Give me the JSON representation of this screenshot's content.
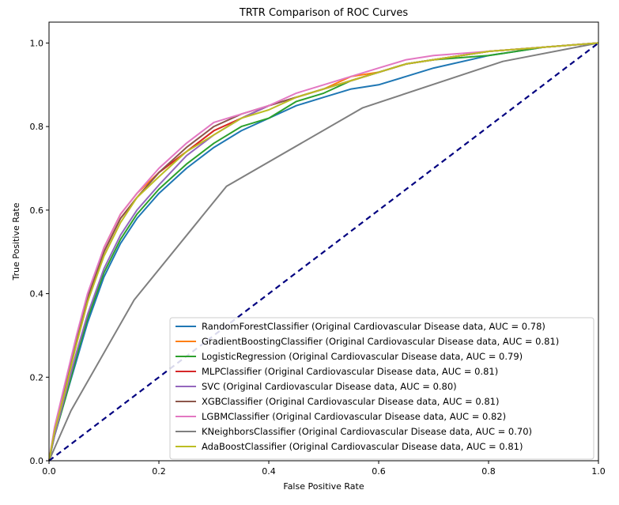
{
  "chart_data": {
    "type": "line",
    "title": "TRTR Comparison of ROC Curves",
    "xlabel": "False Positive Rate",
    "ylabel": "True Positive Rate",
    "xlim": [
      0.0,
      1.0
    ],
    "ylim": [
      0.0,
      1.05
    ],
    "xticks": [
      "0.0",
      "0.2",
      "0.4",
      "0.6",
      "0.8",
      "1.0"
    ],
    "yticks": [
      "0.0",
      "0.2",
      "0.4",
      "0.6",
      "0.8",
      "1.0"
    ],
    "grid": false,
    "legend_position": "lower-right",
    "series": [
      {
        "name": "RandomForestClassifier (Original Cardiovascular Disease data, AUC = 0.78)",
        "color": "#1f77b4",
        "x": [
          0,
          0.01,
          0.03,
          0.05,
          0.07,
          0.1,
          0.13,
          0.16,
          0.2,
          0.25,
          0.3,
          0.35,
          0.4,
          0.45,
          0.5,
          0.55,
          0.6,
          0.65,
          0.7,
          0.8,
          0.9,
          1.0
        ],
        "y": [
          0,
          0.06,
          0.15,
          0.24,
          0.33,
          0.44,
          0.52,
          0.58,
          0.64,
          0.7,
          0.75,
          0.79,
          0.82,
          0.85,
          0.87,
          0.89,
          0.9,
          0.92,
          0.94,
          0.97,
          0.99,
          1.0
        ]
      },
      {
        "name": "GradientBoostingClassifier (Original Cardiovascular Disease data, AUC = 0.81)",
        "color": "#ff7f0e",
        "x": [
          0,
          0.01,
          0.03,
          0.05,
          0.07,
          0.1,
          0.13,
          0.16,
          0.2,
          0.25,
          0.3,
          0.35,
          0.4,
          0.45,
          0.5,
          0.55,
          0.6,
          0.65,
          0.7,
          0.8,
          0.9,
          1.0
        ],
        "y": [
          0,
          0.07,
          0.18,
          0.29,
          0.39,
          0.51,
          0.59,
          0.64,
          0.69,
          0.74,
          0.79,
          0.82,
          0.85,
          0.87,
          0.89,
          0.92,
          0.93,
          0.95,
          0.96,
          0.98,
          0.99,
          1.0
        ]
      },
      {
        "name": "LogisticRegression (Original Cardiovascular Disease data, AUC = 0.79)",
        "color": "#2ca02c",
        "x": [
          0,
          0.01,
          0.03,
          0.05,
          0.07,
          0.1,
          0.13,
          0.16,
          0.2,
          0.25,
          0.3,
          0.35,
          0.4,
          0.45,
          0.5,
          0.55,
          0.6,
          0.65,
          0.7,
          0.8,
          0.9,
          1.0
        ],
        "y": [
          0,
          0.06,
          0.15,
          0.25,
          0.34,
          0.45,
          0.53,
          0.59,
          0.65,
          0.71,
          0.76,
          0.8,
          0.82,
          0.86,
          0.88,
          0.91,
          0.93,
          0.95,
          0.96,
          0.97,
          0.99,
          1.0
        ]
      },
      {
        "name": "MLPClassifier (Original Cardiovascular Disease data, AUC = 0.81)",
        "color": "#d62728",
        "x": [
          0,
          0.01,
          0.03,
          0.05,
          0.07,
          0.1,
          0.13,
          0.16,
          0.2,
          0.25,
          0.3,
          0.35,
          0.4,
          0.45,
          0.5,
          0.55,
          0.6,
          0.65,
          0.7,
          0.8,
          0.9,
          1.0
        ],
        "y": [
          0,
          0.07,
          0.18,
          0.28,
          0.38,
          0.5,
          0.58,
          0.63,
          0.69,
          0.74,
          0.79,
          0.82,
          0.85,
          0.87,
          0.89,
          0.91,
          0.93,
          0.95,
          0.96,
          0.98,
          0.99,
          1.0
        ]
      },
      {
        "name": "SVC (Original Cardiovascular Disease data, AUC = 0.80)",
        "color": "#9467bd",
        "x": [
          0,
          0.01,
          0.03,
          0.05,
          0.07,
          0.1,
          0.13,
          0.16,
          0.2,
          0.25,
          0.3,
          0.35,
          0.4,
          0.45,
          0.5,
          0.55,
          0.6,
          0.65,
          0.7,
          0.8,
          0.9,
          1.0
        ],
        "y": [
          0,
          0.06,
          0.16,
          0.26,
          0.35,
          0.46,
          0.54,
          0.6,
          0.66,
          0.73,
          0.78,
          0.82,
          0.85,
          0.87,
          0.89,
          0.91,
          0.93,
          0.95,
          0.96,
          0.98,
          0.99,
          1.0
        ]
      },
      {
        "name": "XGBClassifier (Original Cardiovascular Disease data, AUC = 0.81)",
        "color": "#8c564b",
        "x": [
          0,
          0.01,
          0.03,
          0.05,
          0.07,
          0.1,
          0.13,
          0.16,
          0.2,
          0.25,
          0.3,
          0.35,
          0.4,
          0.45,
          0.5,
          0.55,
          0.6,
          0.65,
          0.7,
          0.8,
          0.9,
          1.0
        ],
        "y": [
          0,
          0.07,
          0.18,
          0.29,
          0.39,
          0.5,
          0.58,
          0.63,
          0.69,
          0.75,
          0.8,
          0.83,
          0.85,
          0.87,
          0.89,
          0.91,
          0.93,
          0.95,
          0.96,
          0.98,
          0.99,
          1.0
        ]
      },
      {
        "name": "LGBMClassifier (Original Cardiovascular Disease data, AUC = 0.82)",
        "color": "#e377c2",
        "x": [
          0,
          0.01,
          0.03,
          0.05,
          0.07,
          0.1,
          0.13,
          0.16,
          0.2,
          0.25,
          0.3,
          0.35,
          0.4,
          0.45,
          0.5,
          0.55,
          0.6,
          0.65,
          0.7,
          0.8,
          0.9,
          1.0
        ],
        "y": [
          0,
          0.08,
          0.19,
          0.3,
          0.4,
          0.51,
          0.59,
          0.64,
          0.7,
          0.76,
          0.81,
          0.83,
          0.85,
          0.88,
          0.9,
          0.92,
          0.94,
          0.96,
          0.97,
          0.98,
          0.99,
          1.0
        ]
      },
      {
        "name": "KNeighborsClassifier (Original Cardiovascular Disease data, AUC = 0.70)",
        "color": "#7f7f7f",
        "x": [
          0,
          0.04,
          0.155,
          0.323,
          0.571,
          0.826,
          1.0
        ],
        "y": [
          0,
          0.12,
          0.385,
          0.657,
          0.845,
          0.956,
          1.0
        ]
      },
      {
        "name": "AdaBoostClassifier (Original Cardiovascular Disease data, AUC = 0.81)",
        "color": "#bcbd22",
        "x": [
          0,
          0.01,
          0.03,
          0.05,
          0.07,
          0.1,
          0.13,
          0.16,
          0.2,
          0.25,
          0.3,
          0.35,
          0.4,
          0.45,
          0.5,
          0.55,
          0.6,
          0.65,
          0.7,
          0.8,
          0.9,
          1.0
        ],
        "y": [
          0,
          0.07,
          0.17,
          0.28,
          0.38,
          0.49,
          0.57,
          0.63,
          0.68,
          0.74,
          0.78,
          0.82,
          0.84,
          0.87,
          0.89,
          0.91,
          0.93,
          0.95,
          0.96,
          0.98,
          0.99,
          1.0
        ]
      }
    ],
    "reference_line": {
      "color": "#000080",
      "style": "dashed",
      "x": [
        0,
        1
      ],
      "y": [
        0,
        1
      ]
    }
  }
}
